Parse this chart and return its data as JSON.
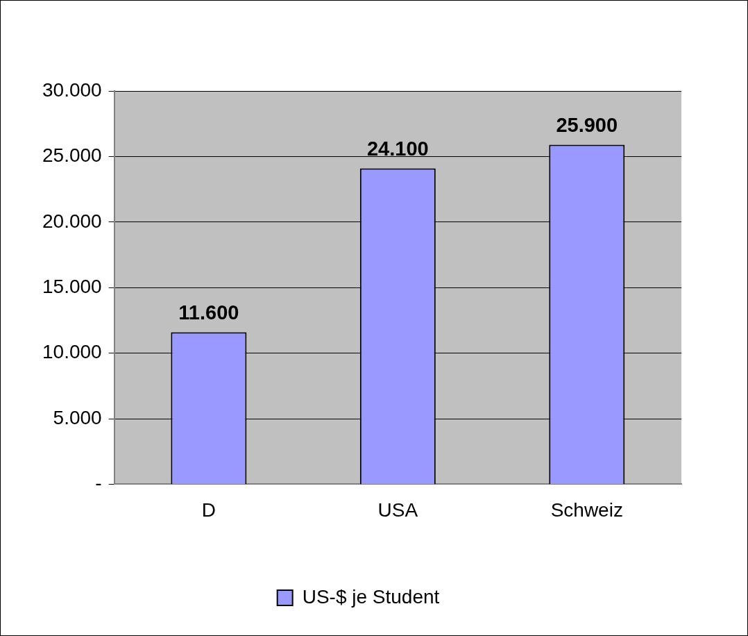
{
  "chart_data": {
    "type": "bar",
    "categories": [
      "D",
      "USA",
      "Schweiz"
    ],
    "series": [
      {
        "name": "US-$ je Student",
        "color": "#9999ff",
        "values": [
          11600,
          24100,
          25900
        ],
        "value_labels": [
          "11.600",
          "24.100",
          "25.900"
        ]
      }
    ],
    "ylim": [
      0,
      30000
    ],
    "yticks": [
      {
        "value": 0,
        "label": "-"
      },
      {
        "value": 5000,
        "label": "5.000"
      },
      {
        "value": 10000,
        "label": "10.000"
      },
      {
        "value": 15000,
        "label": "15.000"
      },
      {
        "value": 20000,
        "label": "20.000"
      },
      {
        "value": 25000,
        "label": "25.000"
      },
      {
        "value": 30000,
        "label": "30.000"
      }
    ],
    "grid": "y",
    "legend": "bottom"
  }
}
